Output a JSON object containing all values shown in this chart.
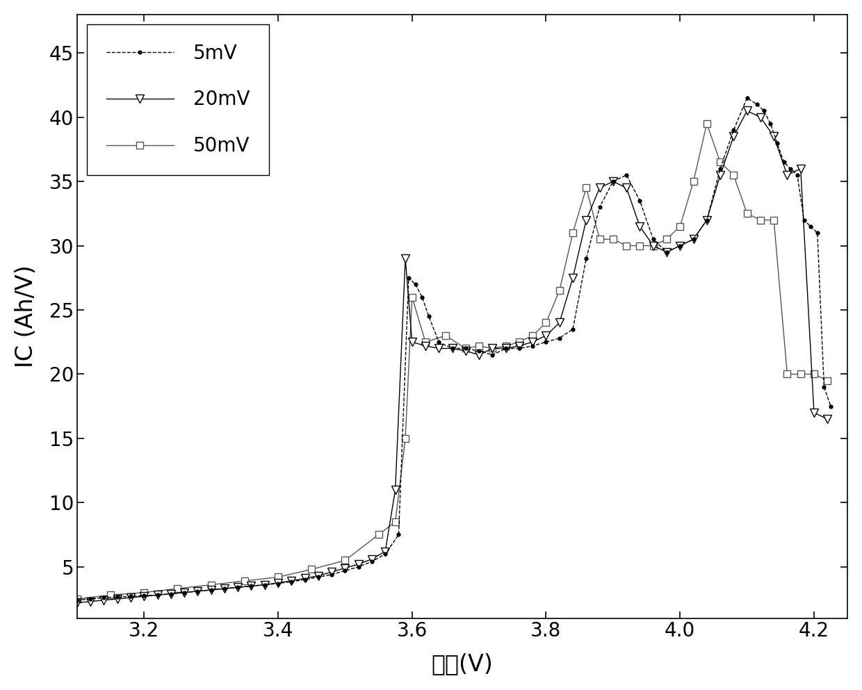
{
  "title": "",
  "xlabel": "电压(V)",
  "ylabel": "IC (Ah/V)",
  "xlim": [
    3.1,
    4.25
  ],
  "ylim": [
    1,
    48
  ],
  "xticks": [
    3.2,
    3.4,
    3.6,
    3.8,
    4.0,
    4.2
  ],
  "yticks": [
    5,
    10,
    15,
    20,
    25,
    30,
    35,
    40,
    45
  ],
  "background_color": "white",
  "v5": [
    3.1,
    3.12,
    3.14,
    3.16,
    3.18,
    3.2,
    3.22,
    3.24,
    3.26,
    3.28,
    3.3,
    3.32,
    3.34,
    3.36,
    3.38,
    3.4,
    3.42,
    3.44,
    3.46,
    3.48,
    3.5,
    3.52,
    3.54,
    3.56,
    3.58,
    3.595,
    3.605,
    3.615,
    3.625,
    3.64,
    3.66,
    3.68,
    3.7,
    3.72,
    3.74,
    3.76,
    3.78,
    3.8,
    3.82,
    3.84,
    3.86,
    3.88,
    3.9,
    3.92,
    3.94,
    3.96,
    3.98,
    4.0,
    4.02,
    4.04,
    4.06,
    4.08,
    4.1,
    4.115,
    4.125,
    4.135,
    4.145,
    4.155,
    4.165,
    4.175,
    4.185,
    4.195,
    4.205,
    4.215,
    4.225
  ],
  "ic5": [
    2.4,
    2.5,
    2.6,
    2.65,
    2.7,
    2.75,
    2.8,
    2.9,
    3.0,
    3.1,
    3.2,
    3.3,
    3.4,
    3.5,
    3.6,
    3.7,
    3.85,
    4.0,
    4.2,
    4.4,
    4.7,
    5.0,
    5.4,
    6.0,
    7.5,
    27.5,
    27.0,
    26.0,
    24.5,
    22.5,
    22.0,
    22.0,
    21.8,
    21.5,
    22.0,
    22.0,
    22.2,
    22.5,
    22.8,
    23.5,
    29.0,
    33.0,
    35.0,
    35.5,
    33.5,
    30.5,
    29.5,
    30.0,
    30.5,
    32.0,
    36.0,
    39.0,
    41.5,
    41.0,
    40.5,
    39.5,
    38.0,
    36.5,
    36.0,
    35.5,
    32.0,
    31.5,
    31.0,
    19.0,
    17.5
  ],
  "v20": [
    3.1,
    3.12,
    3.14,
    3.16,
    3.18,
    3.2,
    3.22,
    3.24,
    3.26,
    3.28,
    3.3,
    3.32,
    3.34,
    3.36,
    3.38,
    3.4,
    3.42,
    3.44,
    3.46,
    3.48,
    3.5,
    3.52,
    3.54,
    3.56,
    3.575,
    3.59,
    3.6,
    3.62,
    3.64,
    3.66,
    3.68,
    3.7,
    3.72,
    3.74,
    3.76,
    3.78,
    3.8,
    3.82,
    3.84,
    3.86,
    3.88,
    3.9,
    3.92,
    3.94,
    3.96,
    3.98,
    4.0,
    4.02,
    4.04,
    4.06,
    4.08,
    4.1,
    4.12,
    4.14,
    4.16,
    4.18,
    4.2,
    4.22
  ],
  "ic20": [
    2.2,
    2.3,
    2.4,
    2.5,
    2.6,
    2.7,
    2.8,
    2.9,
    3.0,
    3.1,
    3.2,
    3.3,
    3.4,
    3.5,
    3.6,
    3.75,
    3.9,
    4.1,
    4.3,
    4.6,
    4.9,
    5.2,
    5.6,
    6.2,
    11.0,
    29.0,
    22.5,
    22.2,
    22.0,
    22.0,
    21.8,
    21.5,
    22.0,
    22.0,
    22.2,
    22.5,
    23.0,
    24.0,
    27.5,
    32.0,
    34.5,
    35.0,
    34.5,
    31.5,
    30.0,
    29.5,
    30.0,
    30.5,
    32.0,
    35.5,
    38.5,
    40.5,
    40.0,
    38.5,
    35.5,
    36.0,
    17.0,
    16.5
  ],
  "v50": [
    3.1,
    3.15,
    3.2,
    3.25,
    3.3,
    3.35,
    3.4,
    3.45,
    3.5,
    3.55,
    3.575,
    3.59,
    3.6,
    3.62,
    3.65,
    3.68,
    3.7,
    3.72,
    3.74,
    3.76,
    3.78,
    3.8,
    3.82,
    3.84,
    3.86,
    3.88,
    3.9,
    3.92,
    3.94,
    3.96,
    3.98,
    4.0,
    4.02,
    4.04,
    4.06,
    4.08,
    4.1,
    4.12,
    4.14,
    4.16,
    4.18,
    4.2,
    4.22
  ],
  "ic50": [
    2.5,
    2.8,
    3.0,
    3.3,
    3.6,
    3.9,
    4.2,
    4.8,
    5.5,
    7.5,
    8.5,
    15.0,
    26.0,
    22.5,
    23.0,
    22.0,
    22.2,
    22.0,
    22.2,
    22.5,
    23.0,
    24.0,
    26.5,
    31.0,
    34.5,
    30.5,
    30.5,
    30.0,
    30.0,
    30.0,
    30.5,
    31.5,
    35.0,
    39.5,
    36.5,
    35.5,
    32.5,
    32.0,
    32.0,
    20.0,
    20.0,
    20.0,
    19.5
  ]
}
